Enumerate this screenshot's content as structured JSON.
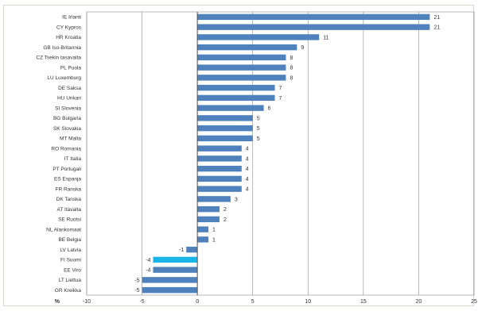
{
  "chart_data": {
    "type": "bar",
    "orientation": "horizontal",
    "xlabel": "%",
    "xlim": [
      -10,
      25
    ],
    "x_ticks": [
      -10,
      -5,
      0,
      5,
      10,
      15,
      20,
      25
    ],
    "grid": "vertical",
    "categories": [
      "IE Irlanti",
      "CY Kypros",
      "HR Kroatia",
      "GB Iso-Britannia",
      "CZ Tsekin tasavalta",
      "PL Puola",
      "LU Luxemburg",
      "DE Saksa",
      "HU Unkari",
      "SI Slovenia",
      "BG Bulgaria",
      "SK Slovakia",
      "MT Malta",
      "RO Romania",
      "IT Italia",
      "PT Portugali",
      "ES Espanja",
      "FR Ranska",
      "DK Tanska",
      "AT Itävalta",
      "SE Ruotsi",
      "NL Alankomaat",
      "BE Belgia",
      "LV Latvia",
      "FI Suomi",
      "EE Viro",
      "LT Liettua",
      "GR Kreikka"
    ],
    "values": [
      21,
      21,
      11,
      9,
      8,
      8,
      8,
      7,
      7,
      6,
      5,
      5,
      5,
      4,
      4,
      4,
      4,
      4,
      3,
      2,
      2,
      1,
      1,
      -1,
      -4,
      -4,
      -5,
      -5
    ],
    "highlight_category": "FI Suomi",
    "bar_color": "#4f81bd",
    "highlight_color": "#19b4e8",
    "frame_color": "#d8d8c8"
  }
}
